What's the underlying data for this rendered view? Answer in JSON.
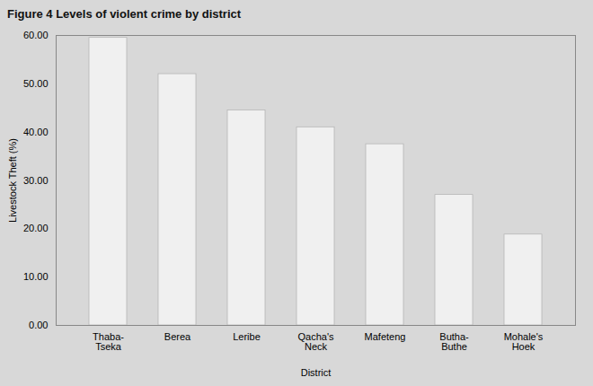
{
  "chart_data": {
    "type": "bar",
    "title": "Figure 4 Levels of violent crime by district",
    "categories": [
      "Thaba-\nTseka",
      "Berea",
      "Leribe",
      "Qacha's\nNeck",
      "Mafeteng",
      "Butha-\nButhe",
      "Mohale's\nHoek"
    ],
    "values": [
      59.5,
      52.0,
      44.5,
      41.0,
      37.5,
      27.0,
      18.8
    ],
    "color": "#f0f0f0",
    "xlabel": "District",
    "ylabel": "Livestock Theft (%)",
    "ylim": [
      0,
      60
    ],
    "yticks": [
      {
        "value": 0,
        "label": "0.00"
      },
      {
        "value": 10,
        "label": "10.00"
      },
      {
        "value": 20,
        "label": "20.00"
      },
      {
        "value": 30,
        "label": "30.00"
      },
      {
        "value": 40,
        "label": "40.00"
      },
      {
        "value": 50,
        "label": "50.00"
      },
      {
        "value": 60,
        "label": "60.00"
      }
    ],
    "grid": false
  }
}
